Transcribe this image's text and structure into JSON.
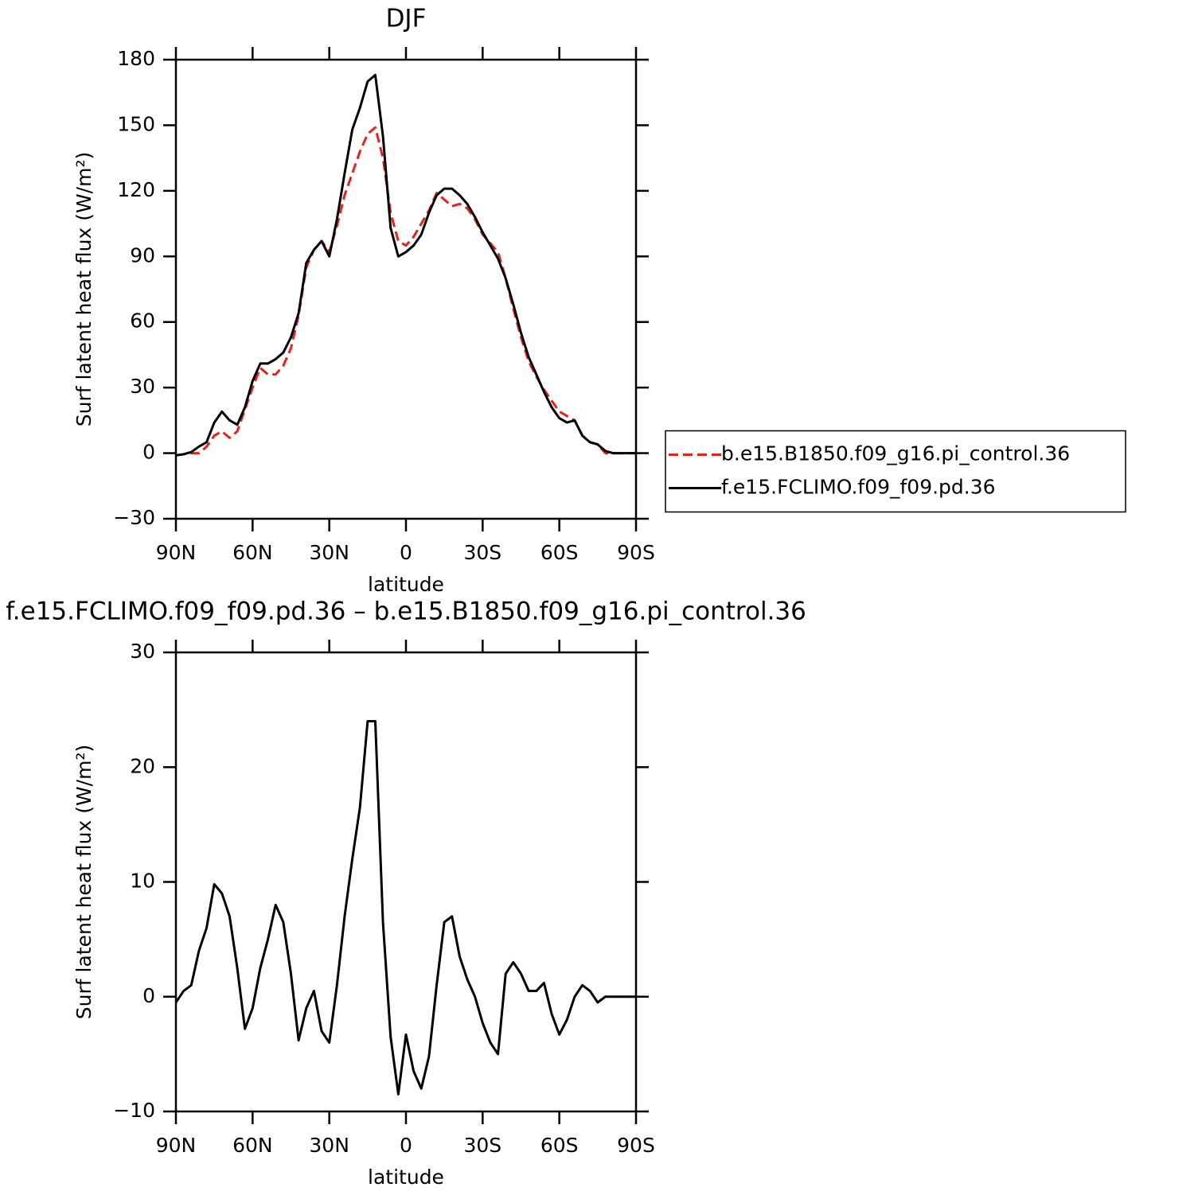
{
  "chart_data": [
    {
      "type": "line",
      "title": "DJF",
      "xlabel": "latitude",
      "ylabel": "Surf latent heat flux (W/m²)",
      "legend": "right",
      "x": [
        90,
        87,
        84,
        81,
        78,
        75,
        72,
        69,
        66,
        63,
        60,
        57,
        54,
        51,
        48,
        45,
        42,
        39,
        36,
        33,
        30,
        27,
        24,
        21,
        18,
        15,
        12,
        9,
        6,
        3,
        0,
        -3,
        -6,
        -9,
        -12,
        -15,
        -18,
        -21,
        -24,
        -27,
        -30,
        -33,
        -36,
        -39,
        -42,
        -45,
        -48,
        -51,
        -54,
        -57,
        -60,
        -63,
        -66,
        -69,
        -72,
        -75,
        -78,
        -81,
        -84,
        -87,
        -90
      ],
      "series": [
        {
          "name": "b.e15.B1850.f09_g16.pi_control.36",
          "color": "#e8211d",
          "dash": true,
          "values": [
            -1,
            -0.5,
            0,
            0,
            3,
            8,
            10,
            7,
            10,
            20,
            30,
            39,
            36,
            36,
            40,
            48,
            63,
            85,
            93,
            97,
            92,
            104,
            118,
            128,
            138,
            146,
            149,
            135,
            110,
            97,
            95,
            99,
            105,
            111,
            119,
            116,
            113,
            114,
            112,
            107,
            100,
            96,
            92,
            80,
            66,
            53,
            42,
            35,
            29,
            24,
            19,
            17,
            15,
            8,
            5,
            4,
            0,
            0,
            0,
            0,
            0
          ]
        },
        {
          "name": "f.e15.FCLIMO.f09_f09.pd.36",
          "color": "#000000",
          "dash": false,
          "values": [
            -1,
            -0.5,
            0.5,
            3,
            5,
            14,
            19,
            15,
            13,
            21,
            33,
            41,
            41,
            43,
            46,
            53,
            64,
            87,
            93,
            97,
            90,
            107,
            128,
            148,
            158,
            170,
            173,
            145,
            103,
            90,
            92,
            95,
            100,
            110,
            118,
            121,
            121,
            118,
            114,
            108,
            101,
            95,
            89,
            80,
            68,
            55,
            44,
            36,
            28,
            21,
            16,
            14,
            15,
            8,
            5,
            4,
            1,
            0,
            0,
            0,
            0
          ]
        }
      ],
      "xlim": [
        90,
        -90
      ],
      "xticks": [
        {
          "value": 90,
          "label": "90N"
        },
        {
          "value": 60,
          "label": "60N"
        },
        {
          "value": 30,
          "label": "30N"
        },
        0,
        {
          "value": -30,
          "label": "30S"
        },
        {
          "value": -60,
          "label": "60S"
        },
        {
          "value": -90,
          "label": "90S"
        }
      ],
      "ylim": [
        -30,
        180
      ],
      "yticks": [
        {
          "value": -30,
          "label": "−30"
        },
        0,
        30,
        60,
        90,
        120,
        150,
        180
      ]
    },
    {
      "type": "line",
      "title": "f.e15.FCLIMO.f09_f09.pd.36 – b.e15.B1850.f09_g16.pi_control.36",
      "xlabel": "latitude",
      "ylabel": "Surf latent heat flux (W/m²)",
      "x": [
        90,
        87,
        84,
        81,
        78,
        75,
        72,
        69,
        66,
        63,
        60,
        57,
        54,
        51,
        48,
        45,
        42,
        39,
        36,
        33,
        30,
        27,
        24,
        21,
        18,
        15,
        12,
        9,
        6,
        3,
        0,
        -3,
        -6,
        -9,
        -12,
        -15,
        -18,
        -21,
        -24,
        -27,
        -30,
        -33,
        -36,
        -39,
        -42,
        -45,
        -48,
        -51,
        -54,
        -57,
        -60,
        -63,
        -66,
        -69,
        -72,
        -75,
        -78,
        -81,
        -84,
        -87,
        -90
      ],
      "series": [
        {
          "color": "#000000",
          "values": [
            -0.5,
            0.5,
            1,
            4,
            6,
            9.8,
            9,
            7,
            2.5,
            -2.8,
            -1,
            2.5,
            5,
            8,
            6.5,
            2,
            -3.8,
            -1,
            0.5,
            -3,
            -4,
            1,
            7,
            12,
            16.5,
            24,
            24,
            6.5,
            -3.5,
            -8.5,
            -3.3,
            -6.5,
            -8,
            -5.2,
            1,
            6.5,
            7,
            3.5,
            1.5,
            0,
            -2.3,
            -4,
            -5,
            2,
            3,
            2,
            0.5,
            0.5,
            1.2,
            -1.5,
            -3.3,
            -2,
            0,
            1,
            0.5,
            -0.5,
            0,
            0,
            0,
            0,
            0
          ]
        }
      ],
      "xlim": [
        90,
        -90
      ],
      "xticks": [
        {
          "value": 90,
          "label": "90N"
        },
        {
          "value": 60,
          "label": "60N"
        },
        {
          "value": 30,
          "label": "30N"
        },
        0,
        {
          "value": -30,
          "label": "30S"
        },
        {
          "value": -60,
          "label": "60S"
        },
        {
          "value": -90,
          "label": "90S"
        }
      ],
      "ylim": [
        -10,
        30
      ],
      "yticks": [
        {
          "value": -10,
          "label": "−10"
        },
        0,
        10,
        20,
        30
      ]
    }
  ]
}
